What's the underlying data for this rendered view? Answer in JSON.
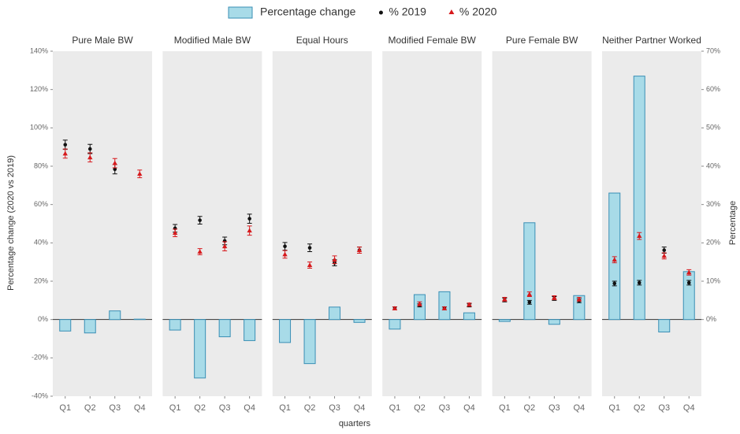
{
  "chart_data": {
    "type": "faceted-bar-point",
    "x_label": "quarters",
    "y_label": "Percentage change (2020 vs 2019)",
    "y2_label": "Percentage",
    "categories": [
      "Q1",
      "Q2",
      "Q3",
      "Q4"
    ],
    "ylim": [
      -40,
      140
    ],
    "yticks": [
      {
        "value": -40,
        "label": "-40%"
      },
      {
        "value": -20,
        "label": "-20%"
      },
      {
        "value": 0,
        "label": "0%"
      },
      {
        "value": 20,
        "label": "20%"
      },
      {
        "value": 40,
        "label": "40%"
      },
      {
        "value": 60,
        "label": "60%"
      },
      {
        "value": 80,
        "label": "80%"
      },
      {
        "value": 100,
        "label": "100%"
      },
      {
        "value": 120,
        "label": "120%"
      },
      {
        "value": 140,
        "label": "140%"
      }
    ],
    "y2lim": [
      -20,
      70
    ],
    "y2ticks": [
      {
        "value": 0,
        "label": "0%"
      },
      {
        "value": 10,
        "label": "10%"
      },
      {
        "value": 20,
        "label": "20%"
      },
      {
        "value": 30,
        "label": "30%"
      },
      {
        "value": 40,
        "label": "40%"
      },
      {
        "value": 50,
        "label": "50%"
      },
      {
        "value": 60,
        "label": "60%"
      },
      {
        "value": 70,
        "label": "70%"
      }
    ],
    "series": [
      {
        "name": "Percentage change",
        "color": "#a8dbe8",
        "mark": "bar"
      },
      {
        "name": "% 2019",
        "color": "#111111",
        "mark": "point",
        "axis": "y2"
      },
      {
        "name": "% 2020",
        "color": "#d7191c",
        "mark": "triangle",
        "axis": "y2"
      }
    ],
    "panels": [
      {
        "title": "Pure Male BW",
        "series": [
          {
            "values": [
              -6,
              -7,
              4.5,
              0.2
            ]
          },
          {
            "values": [
              45.6,
              44.5,
              39.2,
              null
            ],
            "errors": [
              1.2,
              1.2,
              1.2,
              null
            ]
          },
          {
            "values": [
              43.3,
              42.3,
              40.8,
              38.0
            ],
            "errors": [
              1.2,
              1.2,
              1.2,
              1.0
            ]
          }
        ]
      },
      {
        "title": "Modified Male BW",
        "series": [
          {
            "values": [
              -5.5,
              -30.5,
              -9,
              -11
            ]
          },
          {
            "values": [
              23.8,
              25.9,
              20.5,
              26.3
            ],
            "errors": [
              1.0,
              1.0,
              1.0,
              1.2
            ]
          },
          {
            "values": [
              22.6,
              17.7,
              19.1,
              23.2
            ],
            "errors": [
              1.0,
              0.8,
              1.2,
              1.2
            ]
          }
        ]
      },
      {
        "title": "Equal Hours",
        "series": [
          {
            "values": [
              -12,
              -23,
              6.5,
              -1.5
            ]
          },
          {
            "values": [
              19.1,
              18.7,
              14.8,
              18.1
            ],
            "errors": [
              1.0,
              1.0,
              0.8,
              0.8
            ]
          },
          {
            "values": [
              17.0,
              14.2,
              15.6,
              18.1
            ],
            "errors": [
              1.0,
              0.8,
              1.0,
              0.8
            ]
          }
        ]
      },
      {
        "title": "Modified Female BW",
        "series": [
          {
            "values": [
              -5,
              13,
              14.5,
              3.5
            ]
          },
          {
            "values": [
              2.9,
              3.7,
              2.9,
              3.7
            ],
            "errors": [
              0.4,
              0.4,
              0.4,
              0.4
            ]
          },
          {
            "values": [
              2.9,
              4.1,
              2.9,
              3.9
            ],
            "errors": [
              0.4,
              0.5,
              0.4,
              0.4
            ]
          }
        ]
      },
      {
        "title": "Pure Female BW",
        "series": [
          {
            "values": [
              -1,
              50.5,
              -2.5,
              12.5
            ]
          },
          {
            "values": [
              5.1,
              4.5,
              5.5,
              4.9
            ],
            "errors": [
              0.5,
              0.5,
              0.5,
              0.5
            ]
          },
          {
            "values": [
              5.3,
              6.6,
              5.7,
              5.3
            ],
            "errors": [
              0.5,
              0.6,
              0.5,
              0.5
            ]
          }
        ]
      },
      {
        "title": "Neither Partner Worked",
        "series": [
          {
            "values": [
              66,
              127,
              -6.5,
              25
            ]
          },
          {
            "values": [
              9.4,
              9.6,
              18.1,
              9.6
            ],
            "errors": [
              0.6,
              0.6,
              0.8,
              0.6
            ]
          },
          {
            "values": [
              15.6,
              21.8,
              16.6,
              12.3
            ],
            "errors": [
              0.8,
              0.9,
              0.8,
              0.7
            ]
          }
        ]
      }
    ]
  }
}
